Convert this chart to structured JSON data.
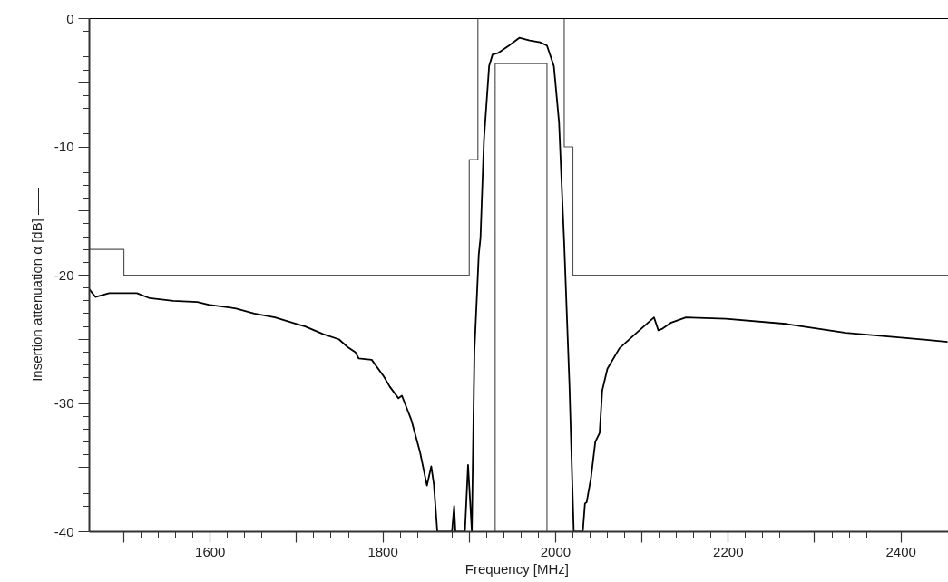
{
  "chart_data": {
    "type": "line",
    "xlabel": "Frequency  [MHz]",
    "ylabel": "Insertion  attenuation  α  [dB]   ——",
    "xlim": [
      1460,
      2455
    ],
    "ylim": [
      -40,
      0
    ],
    "xticks": [
      {
        "value": 1500,
        "label": null
      },
      1600,
      {
        "value": 1700,
        "label": null
      },
      1800,
      {
        "value": 1900,
        "label": null
      },
      2000,
      {
        "value": 2100,
        "label": null
      },
      2200,
      {
        "value": 2300,
        "label": null
      },
      2400
    ],
    "yticks": [
      -40,
      {
        "value": -35,
        "label": null
      },
      -30,
      {
        "value": -25,
        "label": null
      },
      -20,
      {
        "value": -15,
        "label": null
      },
      -10,
      {
        "value": -5,
        "label": null
      },
      0
    ],
    "grid": false,
    "marker": "none",
    "line_style": "solid",
    "series": [
      {
        "color": "#555555",
        "x": [
          1460,
          1500,
          1500,
          1900,
          1900,
          1910,
          1910,
          2010,
          2010,
          2020,
          2020,
          2455
        ],
        "values": [
          -18,
          -18,
          -20,
          -20,
          -11,
          -11,
          0,
          0,
          -10,
          -10,
          -20,
          -20
        ]
      },
      {
        "color": "#555555",
        "x": [
          1930,
          1930,
          1990,
          1990
        ],
        "values": [
          -40,
          -3.5,
          -3.5,
          -40
        ]
      },
      {
        "color": "#000000",
        "x": [
          1460,
          1467,
          1483,
          1515,
          1530,
          1557,
          1585,
          1598,
          1630,
          1651,
          1675,
          1700,
          1710,
          1731,
          1749,
          1759,
          1768,
          1772,
          1787,
          1801,
          1808,
          1818,
          1822,
          1833,
          1843,
          1851,
          1856,
          1859,
          1863,
          1880,
          1882.5,
          1884,
          1895,
          1898.6,
          1903,
          1906,
          1911,
          1913,
          1917,
          1923,
          1927,
          1933,
          1946,
          1958,
          1970,
          1982,
          1990,
          1998,
          2004,
          2010,
          2016,
          2021,
          2031.5,
          2034,
          2036,
          2041,
          2046,
          2051,
          2054,
          2060,
          2074,
          2092,
          2114,
          2119,
          2123,
          2134,
          2151,
          2197,
          2267,
          2336,
          2406,
          2454
        ],
        "values": [
          -21.1,
          -21.7,
          -21.4,
          -21.4,
          -21.8,
          -22.0,
          -22.1,
          -22.3,
          -22.6,
          -23.0,
          -23.3,
          -23.8,
          -24.0,
          -24.6,
          -25.0,
          -25.6,
          -26.0,
          -26.5,
          -26.6,
          -27.9,
          -28.7,
          -29.6,
          -29.4,
          -31.3,
          -33.8,
          -36.4,
          -34.9,
          -36.3,
          -40,
          -40,
          -38.0,
          -40,
          -40,
          -34.8,
          -40,
          -25.9,
          -18.4,
          -17.1,
          -9.5,
          -3.7,
          -2.8,
          -2.7,
          -2.1,
          -1.5,
          -1.7,
          -1.85,
          -2.1,
          -3.7,
          -8.1,
          -17.6,
          -28.5,
          -40,
          -40,
          -37.8,
          -37.7,
          -35.8,
          -33.0,
          -32.3,
          -29.0,
          -27.3,
          -25.7,
          -24.6,
          -23.3,
          -24.3,
          -24.2,
          -23.7,
          -23.3,
          -23.4,
          -23.8,
          -24.5,
          -24.9,
          -25.2
        ]
      }
    ]
  }
}
